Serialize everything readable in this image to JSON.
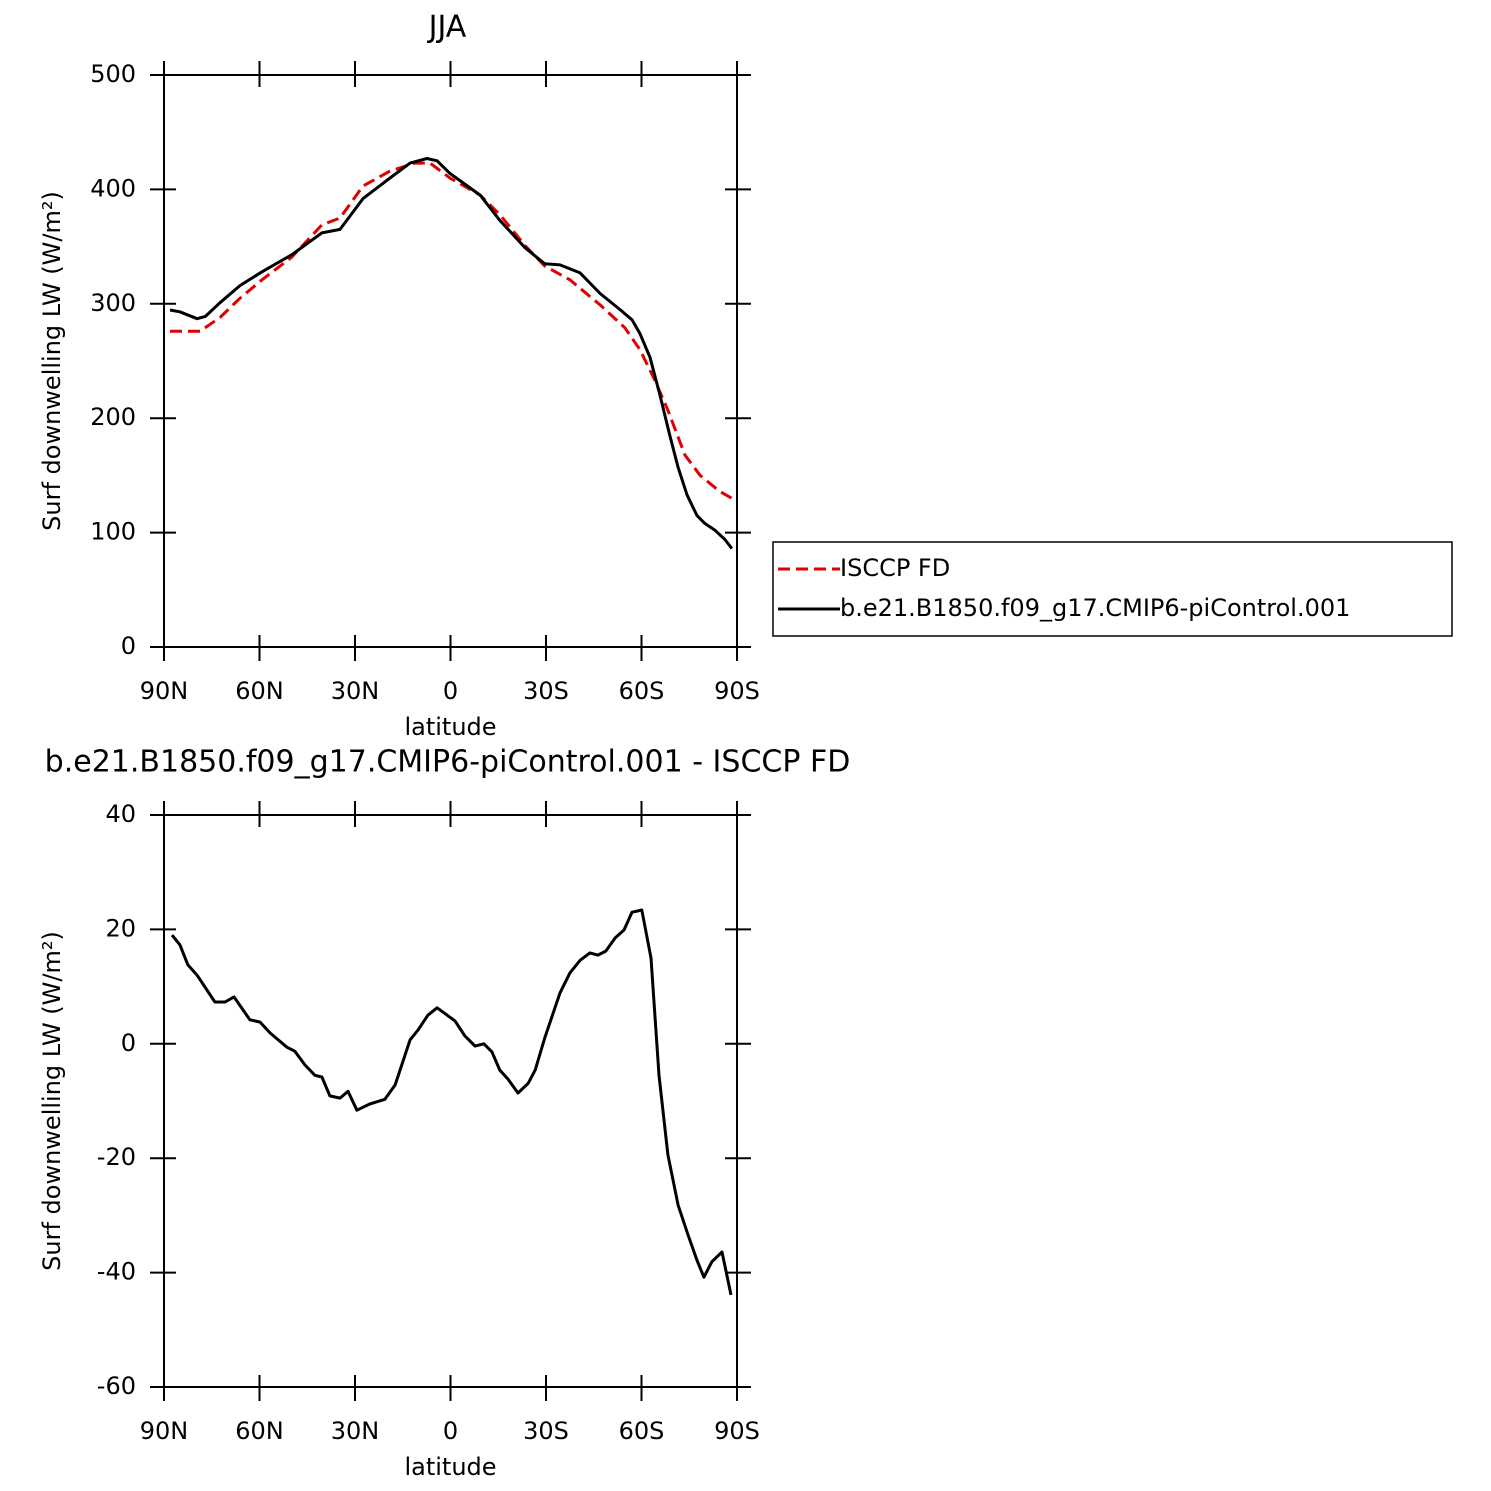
{
  "chart_data": [
    {
      "type": "line",
      "title": "JJA",
      "xlabel": "latitude",
      "ylabel": "Surf downwelling LW (W/m²)",
      "xlim": [
        90,
        -90
      ],
      "xticks": [
        {
          "value": 90,
          "label": "90N"
        },
        {
          "value": 60,
          "label": "60N"
        },
        {
          "value": 30,
          "label": "30N"
        },
        0,
        {
          "value": -30,
          "label": "30S"
        },
        {
          "value": -60,
          "label": "60S"
        },
        {
          "value": -90,
          "label": "90S"
        }
      ],
      "ylim": [
        0,
        500
      ],
      "yticks": [
        0,
        100,
        200,
        300,
        400,
        500
      ],
      "legend": "right",
      "series": [
        {
          "name": "ISCCP FD",
          "color": "#e00000",
          "dashed": true,
          "x": [
            88.1,
            82.5,
            78.7,
            72.4,
            66.1,
            59.2,
            49.8,
            40.4,
            34.7,
            27.5,
            19,
            11.2,
            6.4,
            0.2,
            -9.3,
            -15.5,
            -23.4,
            -29.6,
            -37.5,
            -47,
            -54.8,
            -59.5,
            -64.2,
            -68.3,
            -73.6,
            -78.4,
            -84.6,
            -88.4
          ],
          "values": [
            276,
            276,
            276,
            288,
            305,
            321,
            341,
            369,
            375,
            403,
            416,
            423,
            423,
            410,
            395,
            378,
            351,
            333,
            321,
            299,
            279,
            260,
            233,
            207,
            168,
            150,
            136,
            130
          ]
        },
        {
          "name": "b.e21.B1850.f09_g17.CMIP6-piControl.001",
          "color": "#000000",
          "dashed": false,
          "x": [
            88.1,
            85,
            79.6,
            77,
            72.4,
            66.1,
            59.2,
            49.8,
            40.4,
            34.7,
            27.5,
            19,
            12.7,
            7.4,
            4.2,
            0.2,
            -9.3,
            -15.5,
            -23.4,
            -29.6,
            -34.4,
            -40.7,
            -47,
            -53.2,
            -57,
            -59.5,
            -62.7,
            -65.8,
            -68.9,
            -71.5,
            -74.3,
            -77.4,
            -79.9,
            -83.1,
            -86.2,
            -88.4
          ],
          "values": [
            294.6,
            293,
            287,
            289,
            301,
            316,
            328,
            343,
            362,
            365,
            392,
            410,
            423,
            427,
            425,
            414,
            395,
            373,
            349,
            335,
            334,
            327,
            309,
            295,
            286,
            274,
            253,
            220,
            185,
            157,
            133,
            115,
            108,
            102,
            94,
            86
          ]
        }
      ]
    },
    {
      "type": "line",
      "title": "b.e21.B1850.f09_g17.CMIP6-piControl.001 - ISCCP FD",
      "xlabel": "latitude",
      "ylabel": "Surf downwelling LW (W/m²)",
      "xlim": [
        90,
        -90
      ],
      "xticks": [
        {
          "value": 90,
          "label": "90N"
        },
        {
          "value": 60,
          "label": "60N"
        },
        {
          "value": 30,
          "label": "30N"
        },
        0,
        {
          "value": -30,
          "label": "30S"
        },
        {
          "value": -60,
          "label": "60S"
        },
        {
          "value": -90,
          "label": "90S"
        }
      ],
      "ylim": [
        -60,
        40
      ],
      "yticks": [
        -60,
        -40,
        -20,
        0,
        20,
        40
      ],
      "series": [
        {
          "color": "#000000",
          "dashed": false,
          "x": [
            87.5,
            85,
            82.5,
            79.6,
            74,
            70.8,
            68,
            63,
            59.8,
            56.7,
            51.4,
            48.9,
            45.7,
            42.6,
            40.4,
            37.9,
            34.7,
            32.2,
            29.4,
            25.3,
            20.6,
            17.4,
            12.7,
            10.2,
            7.1,
            4.2,
            -1.4,
            -4.5,
            -7.7,
            -10.5,
            -13,
            -15.5,
            -18.1,
            -21.2,
            -24.4,
            -26.6,
            -29.6,
            -34.4,
            -37.5,
            -40.7,
            -43.8,
            -46.3,
            -48.8,
            -51.7,
            -54.5,
            -57,
            -60.1,
            -63,
            -65.5,
            -68.3,
            -71.5,
            -74.6,
            -77.4,
            -79.6,
            -82.1,
            -85.3,
            -88.1
          ],
          "values": [
            19,
            17.3,
            13.8,
            12,
            7.3,
            7.3,
            8.2,
            4.2,
            3.8,
            1.9,
            -0.6,
            -1.3,
            -3.7,
            -5.5,
            -5.8,
            -9.1,
            -9.5,
            -8.3,
            -11.6,
            -10.5,
            -9.7,
            -7.2,
            0.7,
            2.4,
            5,
            6.3,
            4,
            1.4,
            -0.4,
            0,
            -1.4,
            -4.6,
            -6.2,
            -8.6,
            -6.9,
            -4.6,
            1,
            8.9,
            12.4,
            14.6,
            15.9,
            15.5,
            16.2,
            18.5,
            19.9,
            23,
            23.4,
            15,
            -5.5,
            -19.4,
            -28.2,
            -33.4,
            -37.8,
            -40.8,
            -38.1,
            -36.4,
            -43.9
          ]
        }
      ]
    }
  ]
}
